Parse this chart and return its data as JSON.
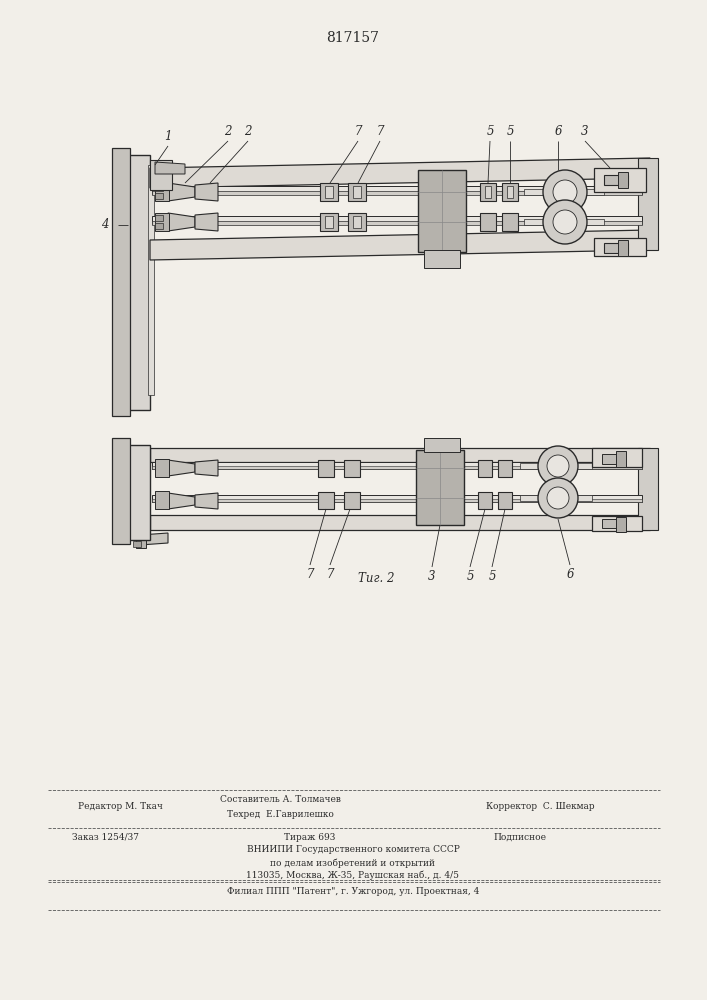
{
  "patent_number": "817157",
  "fig2_label": "Τиг. 2",
  "footer_lines": [
    "Составитель А. Толмачев",
    "Техред  Е.Гаврилешко",
    "Корректор  С. Шекмар"
  ],
  "editor_line": "Редактор М. Ткач",
  "order_line": "Заказ 1254/37",
  "tirazh_line": "Тираж 693",
  "podpisnoe": "Подписное",
  "vniipii_lines": [
    "ВНИИПИ Государственного комитета СССР",
    "по делам изобретений и открытий",
    "113035, Москва, Ж-35, Раушская наб., д. 4/5"
  ],
  "filial_line": "Филиал ППП \"Патент\", г. Ужгород, ул. Проектная, 4",
  "bg_color": "#f2efe9",
  "line_color": "#2a2a2a",
  "text_color": "#2a2a2a"
}
